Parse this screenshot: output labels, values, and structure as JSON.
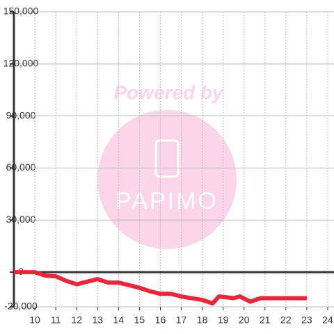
{
  "chart_data": {
    "type": "line",
    "watermark": {
      "line1": "Powered by",
      "line2": "PAPIMO"
    },
    "x": [
      9,
      10,
      10.5,
      11,
      11.5,
      12,
      12.5,
      13,
      13.5,
      14,
      14.5,
      15,
      15.5,
      16,
      16.5,
      17,
      17.5,
      18,
      18.5,
      18.8,
      19.5,
      19.8,
      20.3,
      20.8,
      23
    ],
    "series": [
      {
        "color": "#e8283a",
        "values": [
          0,
          0,
          -2000,
          -2400,
          -5000,
          -7000,
          -5500,
          -4000,
          -6000,
          -6000,
          -7500,
          -9000,
          -11000,
          -12500,
          -12500,
          -14000,
          -15000,
          -16000,
          -18000,
          -14000,
          -15000,
          -14000,
          -17000,
          -15000,
          -15000
        ]
      }
    ],
    "xlim": [
      9,
      24.3
    ],
    "ylim": [
      -20000,
      150000
    ],
    "xticks": [
      10,
      11,
      12,
      13,
      14,
      15,
      16,
      17,
      18,
      19,
      20,
      21,
      22,
      23,
      24
    ],
    "yticks": [
      {
        "value": -20000,
        "label": "-20,000"
      },
      0,
      {
        "value": 30000,
        "label": "30,000"
      },
      {
        "value": 60000,
        "label": "60,000"
      },
      {
        "value": 90000,
        "label": "90,000"
      },
      {
        "value": 120000,
        "label": "120,000"
      },
      {
        "value": 150000,
        "label": "150,000"
      }
    ],
    "grid": true
  }
}
